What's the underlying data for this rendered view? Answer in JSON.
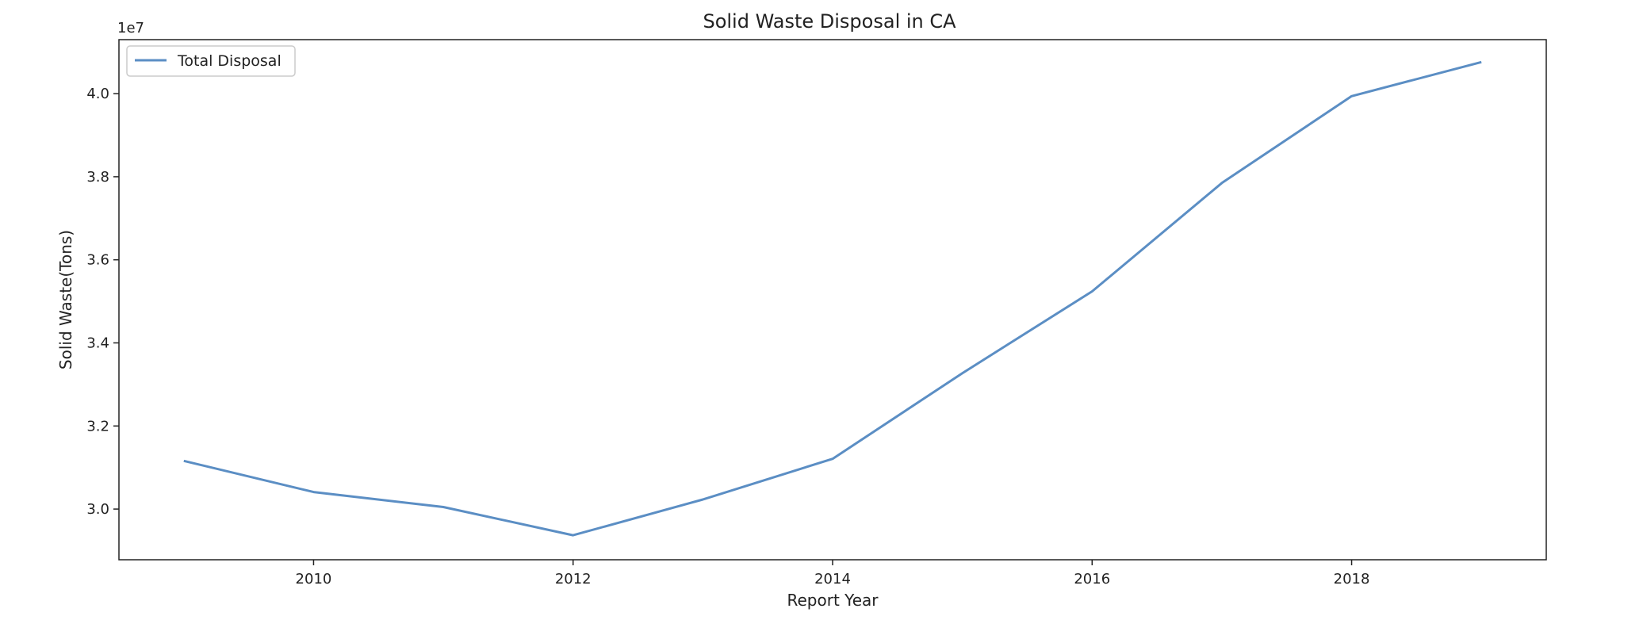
{
  "chart_data": {
    "type": "line",
    "title": "Solid Waste Disposal in CA",
    "xlabel": "Report Year",
    "ylabel": "Solid Waste(Tons)",
    "y_offset_label": "1e7",
    "x": [
      2009,
      2010,
      2011,
      2012,
      2013,
      2014,
      2015,
      2016,
      2017,
      2018,
      2019
    ],
    "series": [
      {
        "name": "Total Disposal",
        "color": "#5b8ec4",
        "values": [
          31160000,
          30410000,
          30050000,
          29370000,
          30230000,
          31210000,
          33270000,
          35240000,
          37850000,
          39940000,
          40760000
        ]
      }
    ],
    "xlim": [
      2008.5,
      2019.5
    ],
    "ylim": [
      28780000,
      41300000
    ],
    "xticks": [
      2010,
      2012,
      2014,
      2016,
      2018
    ],
    "xtick_labels": [
      "2010",
      "2012",
      "2014",
      "2016",
      "2018"
    ],
    "yticks": [
      30000000,
      32000000,
      34000000,
      36000000,
      38000000,
      40000000
    ],
    "ytick_labels": [
      "3.0",
      "3.2",
      "3.4",
      "3.6",
      "3.8",
      "4.0"
    ],
    "legend": "top-left",
    "grid": false
  }
}
